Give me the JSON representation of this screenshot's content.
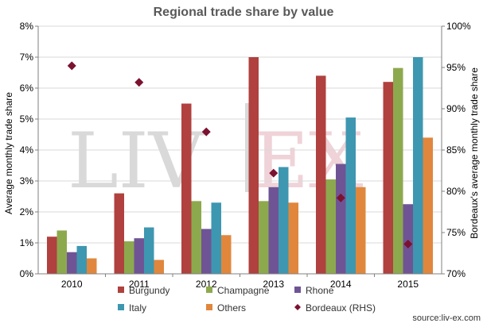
{
  "chart_data": {
    "type": "bar",
    "title": "Regional trade share by value",
    "ylabel": "Average monthly trade share",
    "y2label": "Bordeaux's average monthly trade share",
    "categories": [
      "2010",
      "2011",
      "2012",
      "2013",
      "2014",
      "2015"
    ],
    "ylim": [
      0,
      8
    ],
    "y_unit": "%",
    "y_ticks": [
      "0%",
      "1%",
      "2%",
      "3%",
      "4%",
      "5%",
      "6%",
      "7%",
      "8%"
    ],
    "y2lim": [
      70,
      100
    ],
    "y2_ticks": [
      "70%",
      "75%",
      "80%",
      "85%",
      "90%",
      "95%",
      "100%"
    ],
    "grid": true,
    "legend_position": "bottom",
    "series": [
      {
        "name": "Burgundy",
        "type": "bar",
        "axis": "left",
        "color": "#b0413e",
        "values": [
          1.2,
          2.6,
          5.5,
          7.0,
          6.4,
          6.2
        ]
      },
      {
        "name": "Champagne",
        "type": "bar",
        "axis": "left",
        "color": "#8da94e",
        "values": [
          1.4,
          1.05,
          2.35,
          2.35,
          3.05,
          6.65
        ]
      },
      {
        "name": "Rhone",
        "type": "bar",
        "axis": "left",
        "color": "#6f5495",
        "values": [
          0.7,
          1.15,
          1.45,
          2.8,
          3.55,
          2.25
        ]
      },
      {
        "name": "Italy",
        "type": "bar",
        "axis": "left",
        "color": "#3e97b0",
        "values": [
          0.9,
          1.5,
          2.3,
          3.45,
          5.05,
          7.0
        ]
      },
      {
        "name": "Others",
        "type": "bar",
        "axis": "left",
        "color": "#e0873d",
        "values": [
          0.5,
          0.45,
          1.25,
          2.3,
          2.8,
          4.4
        ]
      },
      {
        "name": "Bordeaux (RHS)",
        "type": "scatter",
        "axis": "right",
        "marker": "diamond",
        "color": "#7b1230",
        "values": [
          95.2,
          93.2,
          87.2,
          82.2,
          79.2,
          73.6
        ]
      }
    ],
    "watermark": {
      "left": "LIV",
      "right": "EX"
    },
    "source": "source:liv-ex.com"
  }
}
